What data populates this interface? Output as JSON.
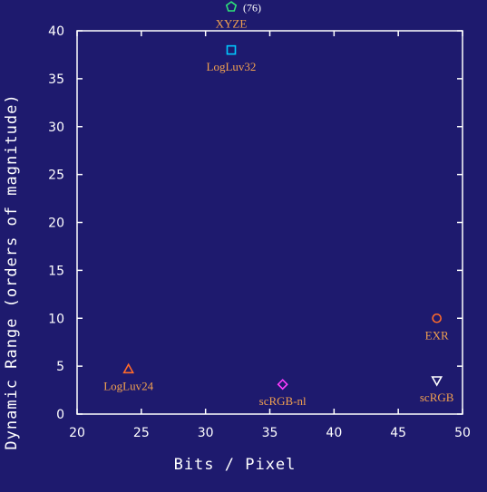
{
  "chart_data": {
    "type": "scatter",
    "title": "",
    "xlabel": "Bits / Pixel",
    "ylabel": "Dynamic Range (orders of magnitude)",
    "xlim": [
      20,
      50
    ],
    "ylim": [
      0,
      40
    ],
    "xticks": [
      "20",
      "25",
      "30",
      "35",
      "40",
      "45",
      "50"
    ],
    "yticks": [
      "0",
      "5",
      "10",
      "15",
      "20",
      "25",
      "30",
      "35",
      "40"
    ],
    "grid": false,
    "background_color": "#1e1a6e",
    "axis_color": "#ffffff",
    "label_color": "#f0a050",
    "points": [
      {
        "label": "XYZE",
        "x": 32,
        "y": 42.5,
        "marker": "pentagon",
        "color": "#2ee07a",
        "annotation": "(76)"
      },
      {
        "label": "LogLuv32",
        "x": 32,
        "y": 38,
        "marker": "square",
        "color": "#00c8ff"
      },
      {
        "label": "EXR",
        "x": 48,
        "y": 10,
        "marker": "circle",
        "color": "#ff6a2a"
      },
      {
        "label": "LogLuv24",
        "x": 24,
        "y": 4.7,
        "marker": "triangle-up",
        "color": "#ff6a2a"
      },
      {
        "label": "scRGB-nl",
        "x": 36,
        "y": 3.1,
        "marker": "diamond",
        "color": "#ff3cff"
      },
      {
        "label": "scRGB",
        "x": 48,
        "y": 3.5,
        "marker": "triangle-down",
        "color": "#ffffff"
      }
    ]
  }
}
